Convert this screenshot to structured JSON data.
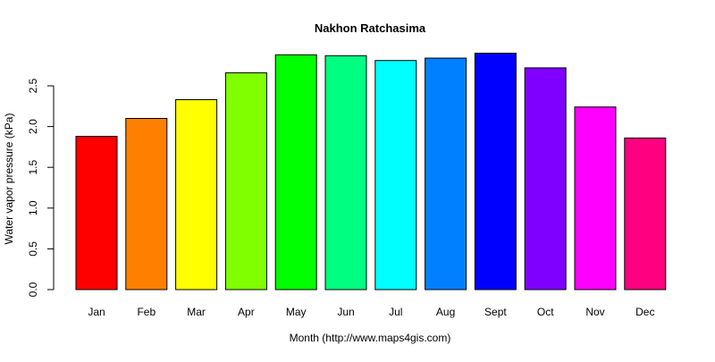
{
  "chart_data": {
    "type": "bar",
    "title": "Nakhon Ratchasima",
    "xlabel": "Month (http://www.maps4gis.com)",
    "ylabel": "Water vapor pressure (kPa)",
    "categories": [
      "Jan",
      "Feb",
      "Mar",
      "Apr",
      "May",
      "Jun",
      "Jul",
      "Aug",
      "Sept",
      "Oct",
      "Nov",
      "Dec"
    ],
    "values": [
      1.88,
      2.1,
      2.33,
      2.66,
      2.88,
      2.87,
      2.81,
      2.84,
      2.9,
      2.72,
      2.24,
      1.86
    ],
    "colors": [
      "#FF0000",
      "#FF8000",
      "#FFFF00",
      "#80FF00",
      "#00FF00",
      "#00FF80",
      "#00FFFF",
      "#0080FF",
      "#0000FF",
      "#8000FF",
      "#FF00FF",
      "#FF0080"
    ],
    "yticks": [
      "0.0",
      "0.5",
      "1.0",
      "1.5",
      "2.0",
      "2.5"
    ],
    "ylim": [
      0,
      2.9
    ],
    "grid": false,
    "legend": "none"
  }
}
